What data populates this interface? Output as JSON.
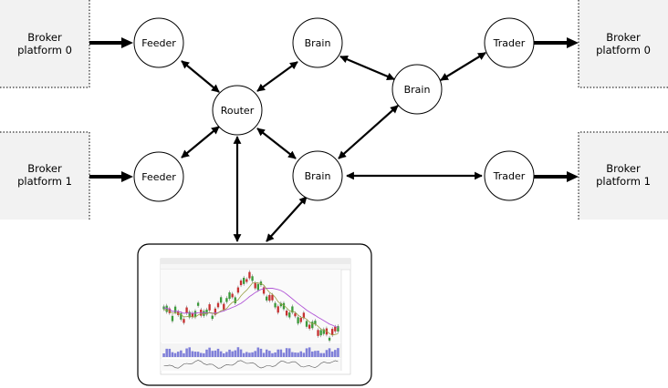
{
  "platforms_left": [
    {
      "line1": "Broker",
      "line2": "platform 0"
    },
    {
      "line1": "Broker",
      "line2": "platform 1"
    }
  ],
  "platforms_right": [
    {
      "line1": "Broker",
      "line2": "platform 0"
    },
    {
      "line1": "Broker",
      "line2": "platform 1"
    }
  ],
  "nodes": {
    "feeder0": "Feeder",
    "feeder1": "Feeder",
    "router": "Router",
    "brain_top": "Brain",
    "brain_mid": "Brain",
    "brain_low": "Brain",
    "trader0": "Trader",
    "trader1": "Trader"
  },
  "colors": {
    "platform_bg": "#f2f2f2",
    "stroke": "#000000",
    "candle_up": "#3a9a3a",
    "candle_down": "#c63131",
    "ma_purple": "#b054d6",
    "ma_olive": "#9aa048",
    "volume": "#7f7fd9"
  }
}
